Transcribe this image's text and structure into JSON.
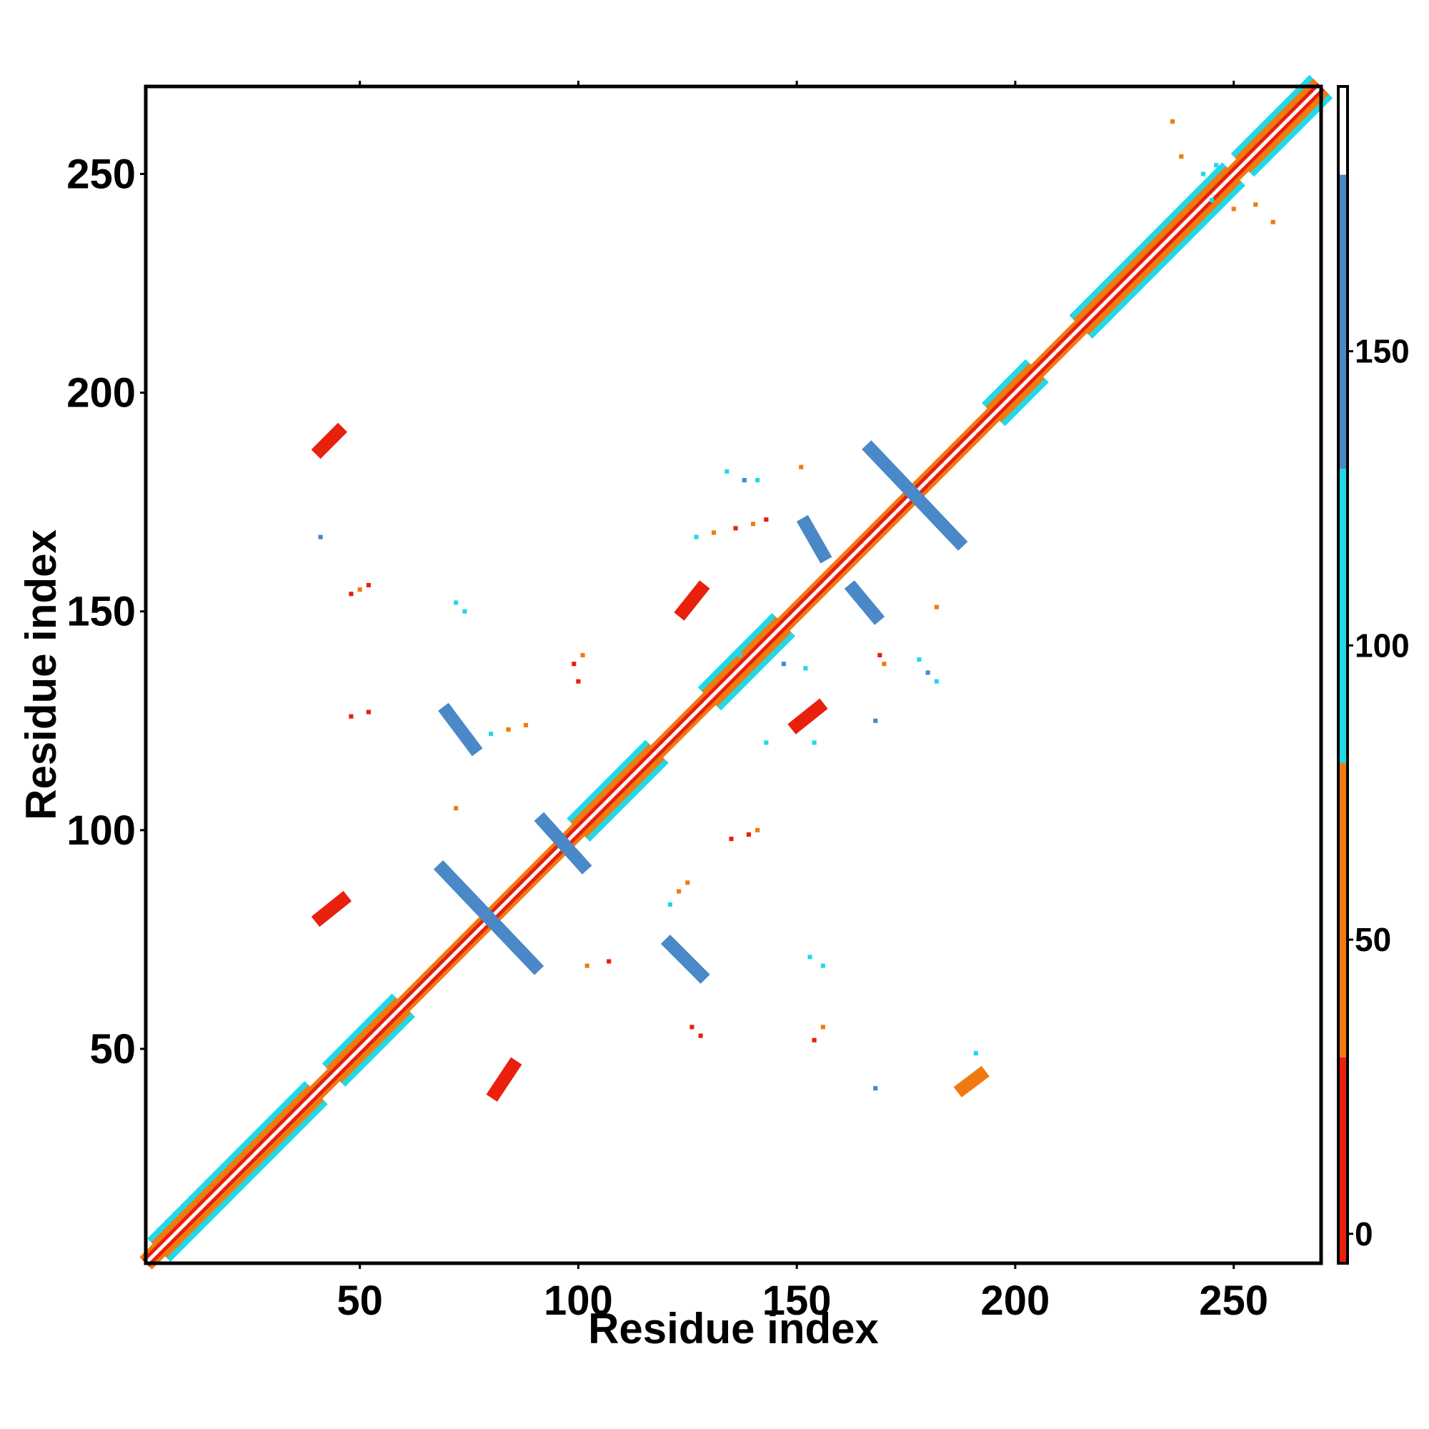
{
  "chart_data": {
    "type": "heatmap",
    "title": "",
    "xlabel": "Residue index",
    "ylabel": "Residue index",
    "xlim": [
      1,
      270
    ],
    "ylim": [
      1,
      270
    ],
    "x_ticks": [
      "50",
      "100",
      "150",
      "200",
      "250"
    ],
    "x_tick_values": [
      50,
      100,
      150,
      200,
      250
    ],
    "y_ticks": [
      "50",
      "100",
      "150",
      "200",
      "250"
    ],
    "y_tick_values": [
      50,
      100,
      150,
      200,
      250
    ],
    "top_tick_values": [
      50,
      100,
      150,
      200,
      250
    ],
    "grid": false,
    "colorbar": {
      "range": [
        -5,
        195
      ],
      "ticks": [
        "0",
        "50",
        "100",
        "150"
      ],
      "tick_values": [
        0,
        50,
        100,
        150
      ],
      "bands": [
        {
          "from": -5,
          "to": 30,
          "color": "#e8200c"
        },
        {
          "from": 30,
          "to": 80,
          "color": "#f07a10"
        },
        {
          "from": 80,
          "to": 130,
          "color": "#20d8e8"
        },
        {
          "from": 130,
          "to": 180,
          "color": "#4a88c8"
        },
        {
          "from": 180,
          "to": 195,
          "color": "#ffffff"
        }
      ]
    },
    "diagonal": {
      "from": 1,
      "to": 270,
      "band_colors": [
        "#e8200c",
        "#f07a10",
        "#20d8e8"
      ]
    },
    "helix_segments": [
      [
        4,
        40
      ],
      [
        44,
        60
      ],
      [
        100,
        118
      ],
      [
        130,
        147
      ],
      [
        195,
        205
      ],
      [
        215,
        250
      ],
      [
        252,
        270
      ]
    ],
    "contact_patches": [
      {
        "x0": 41,
        "y0": 187,
        "x1": 45,
        "y1": 191,
        "width": 3,
        "color": "#e8200c"
      },
      {
        "x0": 41,
        "y0": 80,
        "x1": 46,
        "y1": 84,
        "width": 3,
        "color": "#e8200c"
      },
      {
        "x0": 81,
        "y0": 40,
        "x1": 85,
        "y1": 46,
        "width": 3,
        "color": "#e8200c"
      },
      {
        "x0": 124,
        "y0": 150,
        "x1": 128,
        "y1": 155,
        "width": 3,
        "color": "#e8200c"
      },
      {
        "x0": 150,
        "y0": 124,
        "x1": 155,
        "y1": 128,
        "width": 3,
        "color": "#e8200c"
      },
      {
        "x0": 188,
        "y0": 41,
        "x1": 192,
        "y1": 44,
        "width": 3,
        "color": "#f07a10"
      },
      {
        "x0": 69,
        "y0": 91,
        "x1": 90,
        "y1": 69,
        "width": 3,
        "color": "#4a88c8"
      },
      {
        "x0": 70,
        "y0": 127,
        "x1": 76,
        "y1": 119,
        "width": 3,
        "color": "#4a88c8"
      },
      {
        "x0": 92,
        "y0": 102,
        "x1": 101,
        "y1": 92,
        "width": 3,
        "color": "#4a88c8"
      },
      {
        "x0": 121,
        "y0": 74,
        "x1": 128,
        "y1": 67,
        "width": 3,
        "color": "#4a88c8"
      },
      {
        "x0": 167,
        "y0": 187,
        "x1": 187,
        "y1": 166,
        "width": 3,
        "color": "#4a88c8"
      },
      {
        "x0": 152,
        "y0": 170,
        "x1": 156,
        "y1": 163,
        "width": 3,
        "color": "#4a88c8"
      },
      {
        "x0": 163,
        "y0": 155,
        "x1": 168,
        "y1": 149,
        "width": 3,
        "color": "#4a88c8"
      }
    ],
    "scatter_contacts": [
      {
        "x": 41,
        "y": 167,
        "color": "#4a88c8"
      },
      {
        "x": 48,
        "y": 154,
        "color": "#e8200c"
      },
      {
        "x": 50,
        "y": 155,
        "color": "#f07a10"
      },
      {
        "x": 52,
        "y": 156,
        "color": "#e8200c"
      },
      {
        "x": 48,
        "y": 126,
        "color": "#e8200c"
      },
      {
        "x": 52,
        "y": 127,
        "color": "#e8200c"
      },
      {
        "x": 72,
        "y": 152,
        "color": "#20d8e8"
      },
      {
        "x": 74,
        "y": 150,
        "color": "#20d8e8"
      },
      {
        "x": 72,
        "y": 105,
        "color": "#f07a10"
      },
      {
        "x": 80,
        "y": 122,
        "color": "#20d8e8"
      },
      {
        "x": 84,
        "y": 123,
        "color": "#f07a10"
      },
      {
        "x": 88,
        "y": 124,
        "color": "#f07a10"
      },
      {
        "x": 99,
        "y": 138,
        "color": "#e8200c"
      },
      {
        "x": 101,
        "y": 140,
        "color": "#f07a10"
      },
      {
        "x": 100,
        "y": 134,
        "color": "#e8200c"
      },
      {
        "x": 102,
        "y": 69,
        "color": "#f07a10"
      },
      {
        "x": 107,
        "y": 70,
        "color": "#e8200c"
      },
      {
        "x": 123,
        "y": 86,
        "color": "#f07a10"
      },
      {
        "x": 125,
        "y": 88,
        "color": "#f07a10"
      },
      {
        "x": 121,
        "y": 83,
        "color": "#20d8e8"
      },
      {
        "x": 128,
        "y": 53,
        "color": "#e8200c"
      },
      {
        "x": 126,
        "y": 55,
        "color": "#e8200c"
      },
      {
        "x": 134,
        "y": 182,
        "color": "#20d8e8"
      },
      {
        "x": 138,
        "y": 180,
        "color": "#4a88c8"
      },
      {
        "x": 141,
        "y": 180,
        "color": "#20d8e8"
      },
      {
        "x": 135,
        "y": 98,
        "color": "#e8200c"
      },
      {
        "x": 139,
        "y": 99,
        "color": "#e8200c"
      },
      {
        "x": 141,
        "y": 100,
        "color": "#f07a10"
      },
      {
        "x": 136,
        "y": 169,
        "color": "#e8200c"
      },
      {
        "x": 140,
        "y": 170,
        "color": "#f07a10"
      },
      {
        "x": 143,
        "y": 171,
        "color": "#e8200c"
      },
      {
        "x": 127,
        "y": 167,
        "color": "#20d8e8"
      },
      {
        "x": 131,
        "y": 168,
        "color": "#f07a10"
      },
      {
        "x": 137,
        "y": 140,
        "color": "#20d8e8"
      },
      {
        "x": 143,
        "y": 120,
        "color": "#20d8e8"
      },
      {
        "x": 151,
        "y": 183,
        "color": "#f07a10"
      },
      {
        "x": 147,
        "y": 138,
        "color": "#4a88c8"
      },
      {
        "x": 152,
        "y": 137,
        "color": "#20d8e8"
      },
      {
        "x": 153,
        "y": 71,
        "color": "#20d8e8"
      },
      {
        "x": 156,
        "y": 69,
        "color": "#20d8e8"
      },
      {
        "x": 154,
        "y": 52,
        "color": "#e8200c"
      },
      {
        "x": 156,
        "y": 55,
        "color": "#f07a10"
      },
      {
        "x": 154,
        "y": 120,
        "color": "#20d8e8"
      },
      {
        "x": 169,
        "y": 140,
        "color": "#e8200c"
      },
      {
        "x": 170,
        "y": 138,
        "color": "#f07a10"
      },
      {
        "x": 168,
        "y": 125,
        "color": "#4a88c8"
      },
      {
        "x": 178,
        "y": 139,
        "color": "#20d8e8"
      },
      {
        "x": 180,
        "y": 136,
        "color": "#4a88c8"
      },
      {
        "x": 182,
        "y": 134,
        "color": "#20d8e8"
      },
      {
        "x": 182,
        "y": 151,
        "color": "#f07a10"
      },
      {
        "x": 168,
        "y": 41,
        "color": "#4a88c8"
      },
      {
        "x": 191,
        "y": 49,
        "color": "#20d8e8"
      },
      {
        "x": 243,
        "y": 250,
        "color": "#20d8e8"
      },
      {
        "x": 246,
        "y": 252,
        "color": "#20d8e8"
      },
      {
        "x": 238,
        "y": 254,
        "color": "#f07a10"
      },
      {
        "x": 236,
        "y": 262,
        "color": "#f07a10"
      },
      {
        "x": 245,
        "y": 244,
        "color": "#20d8e8"
      },
      {
        "x": 250,
        "y": 242,
        "color": "#f07a10"
      },
      {
        "x": 255,
        "y": 243,
        "color": "#f07a10"
      },
      {
        "x": 259,
        "y": 239,
        "color": "#f07a10"
      }
    ]
  }
}
